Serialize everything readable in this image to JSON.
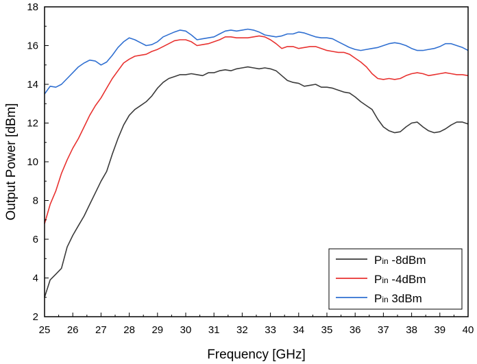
{
  "chart_data": {
    "type": "line",
    "xlabel": "Frequency [GHz]",
    "ylabel": "Output Power [dBm]",
    "xlim": [
      25,
      40
    ],
    "ylim": [
      2,
      18
    ],
    "x_ticks": [
      "25",
      "26",
      "27",
      "28",
      "29",
      "30",
      "31",
      "32",
      "33",
      "34",
      "35",
      "36",
      "37",
      "38",
      "39",
      "40"
    ],
    "y_ticks": [
      "2",
      "4",
      "6",
      "8",
      "10",
      "12",
      "14",
      "16",
      "18"
    ],
    "grid": false,
    "legend_position": "bottom-right",
    "series": [
      {
        "name": "Pin -8dBm",
        "legend_main": "P",
        "legend_sub": "in",
        "legend_rest": " -8dBm",
        "color": "#3a3a3a",
        "points": [
          [
            25,
            3.0
          ],
          [
            25.2,
            3.9
          ],
          [
            25.4,
            4.2
          ],
          [
            25.6,
            4.5
          ],
          [
            25.8,
            5.6
          ],
          [
            26,
            6.2
          ],
          [
            26.2,
            6.7
          ],
          [
            26.4,
            7.2
          ],
          [
            26.6,
            7.8
          ],
          [
            26.8,
            8.4
          ],
          [
            27,
            9.0
          ],
          [
            27.2,
            9.5
          ],
          [
            27.4,
            10.4
          ],
          [
            27.6,
            11.2
          ],
          [
            27.8,
            11.9
          ],
          [
            28,
            12.4
          ],
          [
            28.2,
            12.7
          ],
          [
            28.4,
            12.9
          ],
          [
            28.6,
            13.1
          ],
          [
            28.8,
            13.4
          ],
          [
            29,
            13.8
          ],
          [
            29.2,
            14.1
          ],
          [
            29.4,
            14.3
          ],
          [
            29.6,
            14.4
          ],
          [
            29.8,
            14.5
          ],
          [
            30,
            14.5
          ],
          [
            30.2,
            14.55
          ],
          [
            30.4,
            14.5
          ],
          [
            30.6,
            14.45
          ],
          [
            30.8,
            14.6
          ],
          [
            31,
            14.6
          ],
          [
            31.2,
            14.7
          ],
          [
            31.4,
            14.75
          ],
          [
            31.6,
            14.7
          ],
          [
            31.8,
            14.8
          ],
          [
            32,
            14.85
          ],
          [
            32.2,
            14.9
          ],
          [
            32.4,
            14.85
          ],
          [
            32.6,
            14.8
          ],
          [
            32.8,
            14.85
          ],
          [
            33,
            14.8
          ],
          [
            33.2,
            14.7
          ],
          [
            33.4,
            14.45
          ],
          [
            33.6,
            14.2
          ],
          [
            33.8,
            14.1
          ],
          [
            34,
            14.05
          ],
          [
            34.2,
            13.9
          ],
          [
            34.4,
            13.95
          ],
          [
            34.6,
            14.0
          ],
          [
            34.8,
            13.85
          ],
          [
            35,
            13.85
          ],
          [
            35.2,
            13.8
          ],
          [
            35.4,
            13.7
          ],
          [
            35.6,
            13.6
          ],
          [
            35.8,
            13.55
          ],
          [
            36,
            13.35
          ],
          [
            36.2,
            13.1
          ],
          [
            36.4,
            12.9
          ],
          [
            36.6,
            12.7
          ],
          [
            36.8,
            12.2
          ],
          [
            37,
            11.8
          ],
          [
            37.2,
            11.6
          ],
          [
            37.4,
            11.5
          ],
          [
            37.6,
            11.55
          ],
          [
            37.8,
            11.8
          ],
          [
            38,
            12.0
          ],
          [
            38.2,
            12.05
          ],
          [
            38.4,
            11.8
          ],
          [
            38.6,
            11.6
          ],
          [
            38.8,
            11.5
          ],
          [
            39,
            11.55
          ],
          [
            39.2,
            11.7
          ],
          [
            39.4,
            11.9
          ],
          [
            39.6,
            12.05
          ],
          [
            39.8,
            12.05
          ],
          [
            40,
            11.95
          ]
        ]
      },
      {
        "name": "Pin -4dBm",
        "legend_main": "P",
        "legend_sub": "in",
        "legend_rest": " -4dBm",
        "color": "#e8312f",
        "points": [
          [
            25,
            6.8
          ],
          [
            25.2,
            7.8
          ],
          [
            25.4,
            8.5
          ],
          [
            25.6,
            9.4
          ],
          [
            25.8,
            10.1
          ],
          [
            26,
            10.7
          ],
          [
            26.2,
            11.2
          ],
          [
            26.4,
            11.8
          ],
          [
            26.6,
            12.4
          ],
          [
            26.8,
            12.9
          ],
          [
            27,
            13.3
          ],
          [
            27.2,
            13.8
          ],
          [
            27.4,
            14.3
          ],
          [
            27.6,
            14.7
          ],
          [
            27.8,
            15.1
          ],
          [
            28,
            15.3
          ],
          [
            28.2,
            15.45
          ],
          [
            28.4,
            15.5
          ],
          [
            28.6,
            15.55
          ],
          [
            28.8,
            15.7
          ],
          [
            29,
            15.8
          ],
          [
            29.2,
            15.95
          ],
          [
            29.4,
            16.1
          ],
          [
            29.6,
            16.25
          ],
          [
            29.8,
            16.3
          ],
          [
            30,
            16.3
          ],
          [
            30.2,
            16.2
          ],
          [
            30.4,
            16.0
          ],
          [
            30.6,
            16.05
          ],
          [
            30.8,
            16.1
          ],
          [
            31,
            16.2
          ],
          [
            31.2,
            16.3
          ],
          [
            31.4,
            16.45
          ],
          [
            31.6,
            16.45
          ],
          [
            31.8,
            16.4
          ],
          [
            32,
            16.4
          ],
          [
            32.2,
            16.4
          ],
          [
            32.4,
            16.45
          ],
          [
            32.6,
            16.5
          ],
          [
            32.8,
            16.45
          ],
          [
            33,
            16.3
          ],
          [
            33.2,
            16.1
          ],
          [
            33.4,
            15.85
          ],
          [
            33.6,
            15.95
          ],
          [
            33.8,
            15.95
          ],
          [
            34,
            15.85
          ],
          [
            34.2,
            15.9
          ],
          [
            34.4,
            15.95
          ],
          [
            34.6,
            15.95
          ],
          [
            34.8,
            15.85
          ],
          [
            35,
            15.75
          ],
          [
            35.2,
            15.7
          ],
          [
            35.4,
            15.65
          ],
          [
            35.6,
            15.65
          ],
          [
            35.8,
            15.55
          ],
          [
            36,
            15.35
          ],
          [
            36.2,
            15.15
          ],
          [
            36.4,
            14.9
          ],
          [
            36.6,
            14.55
          ],
          [
            36.8,
            14.3
          ],
          [
            37,
            14.25
          ],
          [
            37.2,
            14.3
          ],
          [
            37.4,
            14.25
          ],
          [
            37.6,
            14.3
          ],
          [
            37.8,
            14.45
          ],
          [
            38,
            14.55
          ],
          [
            38.2,
            14.6
          ],
          [
            38.4,
            14.55
          ],
          [
            38.6,
            14.45
          ],
          [
            38.8,
            14.5
          ],
          [
            39,
            14.55
          ],
          [
            39.2,
            14.6
          ],
          [
            39.4,
            14.55
          ],
          [
            39.6,
            14.5
          ],
          [
            39.8,
            14.5
          ],
          [
            40,
            14.45
          ]
        ]
      },
      {
        "name": "Pin 3dBm",
        "legend_main": "P",
        "legend_sub": "in",
        "legend_rest": " 3dBm",
        "color": "#2f6fd1",
        "points": [
          [
            25,
            13.5
          ],
          [
            25.2,
            13.9
          ],
          [
            25.4,
            13.85
          ],
          [
            25.6,
            14.0
          ],
          [
            25.8,
            14.3
          ],
          [
            26,
            14.6
          ],
          [
            26.2,
            14.9
          ],
          [
            26.4,
            15.1
          ],
          [
            26.6,
            15.25
          ],
          [
            26.8,
            15.2
          ],
          [
            27,
            15.0
          ],
          [
            27.2,
            15.15
          ],
          [
            27.4,
            15.5
          ],
          [
            27.6,
            15.9
          ],
          [
            27.8,
            16.2
          ],
          [
            28,
            16.4
          ],
          [
            28.2,
            16.3
          ],
          [
            28.4,
            16.15
          ],
          [
            28.6,
            16.0
          ],
          [
            28.8,
            16.05
          ],
          [
            29,
            16.2
          ],
          [
            29.2,
            16.45
          ],
          [
            29.6,
            16.7
          ],
          [
            29.8,
            16.8
          ],
          [
            30,
            16.75
          ],
          [
            30.2,
            16.55
          ],
          [
            30.4,
            16.3
          ],
          [
            30.6,
            16.35
          ],
          [
            30.8,
            16.4
          ],
          [
            31,
            16.45
          ],
          [
            31.2,
            16.6
          ],
          [
            31.4,
            16.75
          ],
          [
            31.6,
            16.8
          ],
          [
            31.8,
            16.75
          ],
          [
            32,
            16.8
          ],
          [
            32.2,
            16.85
          ],
          [
            32.4,
            16.8
          ],
          [
            32.6,
            16.7
          ],
          [
            32.8,
            16.55
          ],
          [
            33,
            16.5
          ],
          [
            33.2,
            16.45
          ],
          [
            33.4,
            16.5
          ],
          [
            33.6,
            16.6
          ],
          [
            33.8,
            16.6
          ],
          [
            34,
            16.7
          ],
          [
            34.2,
            16.65
          ],
          [
            34.4,
            16.55
          ],
          [
            34.6,
            16.45
          ],
          [
            34.8,
            16.4
          ],
          [
            35,
            16.4
          ],
          [
            35.2,
            16.35
          ],
          [
            35.4,
            16.2
          ],
          [
            35.6,
            16.05
          ],
          [
            35.8,
            15.9
          ],
          [
            36,
            15.8
          ],
          [
            36.2,
            15.75
          ],
          [
            36.4,
            15.8
          ],
          [
            36.6,
            15.85
          ],
          [
            36.8,
            15.9
          ],
          [
            37,
            16.0
          ],
          [
            37.2,
            16.1
          ],
          [
            37.4,
            16.15
          ],
          [
            37.6,
            16.1
          ],
          [
            37.8,
            16.0
          ],
          [
            38,
            15.85
          ],
          [
            38.2,
            15.75
          ],
          [
            38.4,
            15.75
          ],
          [
            38.6,
            15.8
          ],
          [
            38.8,
            15.85
          ],
          [
            39,
            15.95
          ],
          [
            39.2,
            16.1
          ],
          [
            39.4,
            16.1
          ],
          [
            39.6,
            16.0
          ],
          [
            39.8,
            15.9
          ],
          [
            40,
            15.75
          ]
        ]
      }
    ]
  }
}
